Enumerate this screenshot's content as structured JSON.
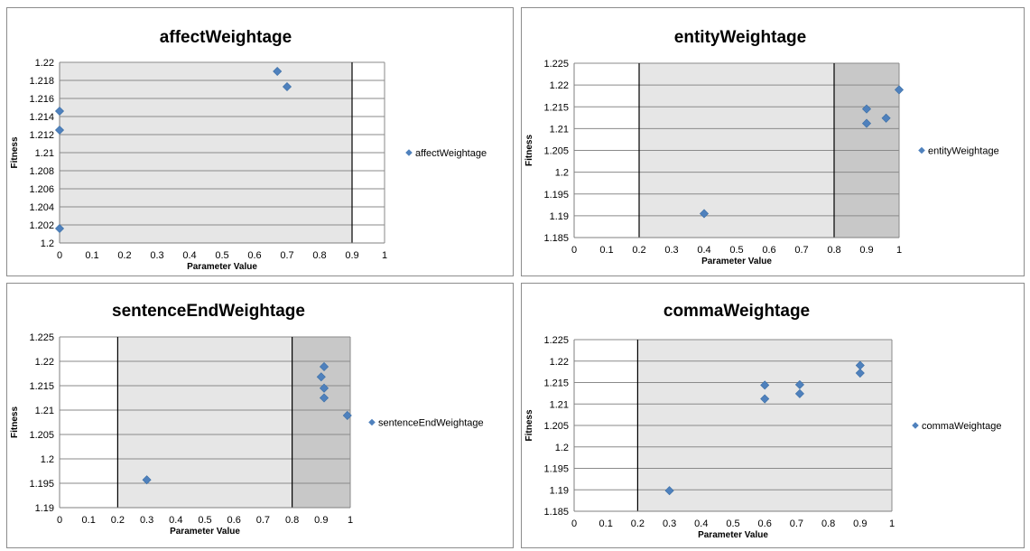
{
  "chart_data": [
    {
      "type": "scatter",
      "title": "affectWeightage",
      "xlabel": "Parameter Value",
      "ylabel": "Fitness",
      "legend": "affectWeightage",
      "legend_position": "right",
      "xlim": [
        0,
        1
      ],
      "ylim": [
        1.2,
        1.22
      ],
      "xticks": [
        0,
        0.1,
        0.2,
        0.3,
        0.4,
        0.5,
        0.6,
        0.7,
        0.8,
        0.9,
        1
      ],
      "xtick_labels": [
        "0",
        "0.1",
        "0.2",
        "0.3",
        "0.4",
        "0.5",
        "0.6",
        "0.7",
        "0.8",
        "0.9",
        "1"
      ],
      "yticks": [
        1.2,
        1.202,
        1.204,
        1.206,
        1.208,
        1.21,
        1.212,
        1.214,
        1.216,
        1.218,
        1.22
      ],
      "ytick_labels": [
        "1.2",
        "1.202",
        "1.204",
        "1.206",
        "1.208",
        "1.21",
        "1.212",
        "1.214",
        "1.216",
        "1.218",
        "1.22"
      ],
      "grid": true,
      "shaded": [
        {
          "from": 0,
          "to": 0.9,
          "color": "#e6e6e6"
        }
      ],
      "vlines": [
        0.9
      ],
      "points": [
        {
          "x": 0.0,
          "y": 1.2146
        },
        {
          "x": 0.0,
          "y": 1.2125
        },
        {
          "x": 0.0,
          "y": 1.2016
        },
        {
          "x": 0.67,
          "y": 1.219
        },
        {
          "x": 0.7,
          "y": 1.2173
        }
      ],
      "marker_color": "#4f81bd"
    },
    {
      "type": "scatter",
      "title": "entityWeightage",
      "xlabel": "Parameter Value",
      "ylabel": "Fitness",
      "legend": "entityWeightage",
      "legend_position": "right",
      "xlim": [
        0,
        1
      ],
      "ylim": [
        1.185,
        1.225
      ],
      "xticks": [
        0,
        0.1,
        0.2,
        0.3,
        0.4,
        0.5,
        0.6,
        0.7,
        0.8,
        0.9,
        1
      ],
      "xtick_labels": [
        "0",
        "0.1",
        "0.2",
        "0.3",
        "0.4",
        "0.5",
        "0.6",
        "0.7",
        "0.8",
        "0.9",
        "1"
      ],
      "yticks": [
        1.185,
        1.19,
        1.195,
        1.2,
        1.205,
        1.21,
        1.215,
        1.22,
        1.225
      ],
      "ytick_labels": [
        "1.185",
        "1.19",
        "1.195",
        "1.2",
        "1.205",
        "1.21",
        "1.215",
        "1.22",
        "1.225"
      ],
      "grid": true,
      "shaded": [
        {
          "from": 0.2,
          "to": 0.8,
          "color": "#e6e6e6"
        },
        {
          "from": 0.8,
          "to": 1.0,
          "color": "#c8c8c8"
        }
      ],
      "vlines": [
        0.2,
        0.8
      ],
      "points": [
        {
          "x": 0.4,
          "y": 1.1905
        },
        {
          "x": 0.9,
          "y": 1.2145
        },
        {
          "x": 0.9,
          "y": 1.2112
        },
        {
          "x": 0.96,
          "y": 1.2124
        },
        {
          "x": 1.0,
          "y": 1.2189
        }
      ],
      "marker_color": "#4f81bd"
    },
    {
      "type": "scatter",
      "title": "sentenceEndWeightage",
      "xlabel": "Parameter Value",
      "ylabel": "Fitness",
      "legend": "sentenceEndWeightage",
      "legend_position": "right",
      "xlim": [
        0,
        1
      ],
      "ylim": [
        1.19,
        1.225
      ],
      "xticks": [
        0,
        0.1,
        0.2,
        0.3,
        0.4,
        0.5,
        0.6,
        0.7,
        0.8,
        0.9,
        1
      ],
      "xtick_labels": [
        "0",
        "0.1",
        "0.2",
        "0.3",
        "0.4",
        "0.5",
        "0.6",
        "0.7",
        "0.8",
        "0.9",
        "1"
      ],
      "yticks": [
        1.19,
        1.195,
        1.2,
        1.205,
        1.21,
        1.215,
        1.22,
        1.225
      ],
      "ytick_labels": [
        "1.19",
        "1.195",
        "1.2",
        "1.205",
        "1.21",
        "1.215",
        "1.22",
        "1.225"
      ],
      "grid": true,
      "shaded": [
        {
          "from": 0.2,
          "to": 0.8,
          "color": "#e6e6e6"
        },
        {
          "from": 0.8,
          "to": 1.0,
          "color": "#c8c8c8"
        }
      ],
      "vlines": [
        0.2,
        0.8
      ],
      "points": [
        {
          "x": 0.3,
          "y": 1.1957
        },
        {
          "x": 0.91,
          "y": 1.2189
        },
        {
          "x": 0.9,
          "y": 1.2168
        },
        {
          "x": 0.91,
          "y": 1.2145
        },
        {
          "x": 0.91,
          "y": 1.2125
        },
        {
          "x": 0.99,
          "y": 1.2089
        }
      ],
      "marker_color": "#4f81bd"
    },
    {
      "type": "scatter",
      "title": "commaWeightage",
      "xlabel": "Parameter Value",
      "ylabel": "Fitness",
      "legend": "commaWeightage",
      "legend_position": "right",
      "xlim": [
        0,
        1
      ],
      "ylim": [
        1.185,
        1.225
      ],
      "xticks": [
        0,
        0.1,
        0.2,
        0.3,
        0.4,
        0.5,
        0.6,
        0.7,
        0.8,
        0.9,
        1
      ],
      "xtick_labels": [
        "0",
        "0.1",
        "0.2",
        "0.3",
        "0.4",
        "0.5",
        "0.6",
        "0.7",
        "0.8",
        "0.9",
        "1"
      ],
      "yticks": [
        1.185,
        1.19,
        1.195,
        1.2,
        1.205,
        1.21,
        1.215,
        1.22,
        1.225
      ],
      "ytick_labels": [
        "1.185",
        "1.19",
        "1.195",
        "1.2",
        "1.205",
        "1.21",
        "1.215",
        "1.22",
        "1.225"
      ],
      "grid": true,
      "shaded": [
        {
          "from": 0.2,
          "to": 1.0,
          "color": "#e6e6e6"
        }
      ],
      "vlines": [
        0.2
      ],
      "points": [
        {
          "x": 0.3,
          "y": 1.1898
        },
        {
          "x": 0.6,
          "y": 1.2144
        },
        {
          "x": 0.6,
          "y": 1.2112
        },
        {
          "x": 0.71,
          "y": 1.2145
        },
        {
          "x": 0.71,
          "y": 1.2124
        },
        {
          "x": 0.9,
          "y": 1.219
        },
        {
          "x": 0.9,
          "y": 1.2172
        }
      ],
      "marker_color": "#4f81bd"
    }
  ]
}
